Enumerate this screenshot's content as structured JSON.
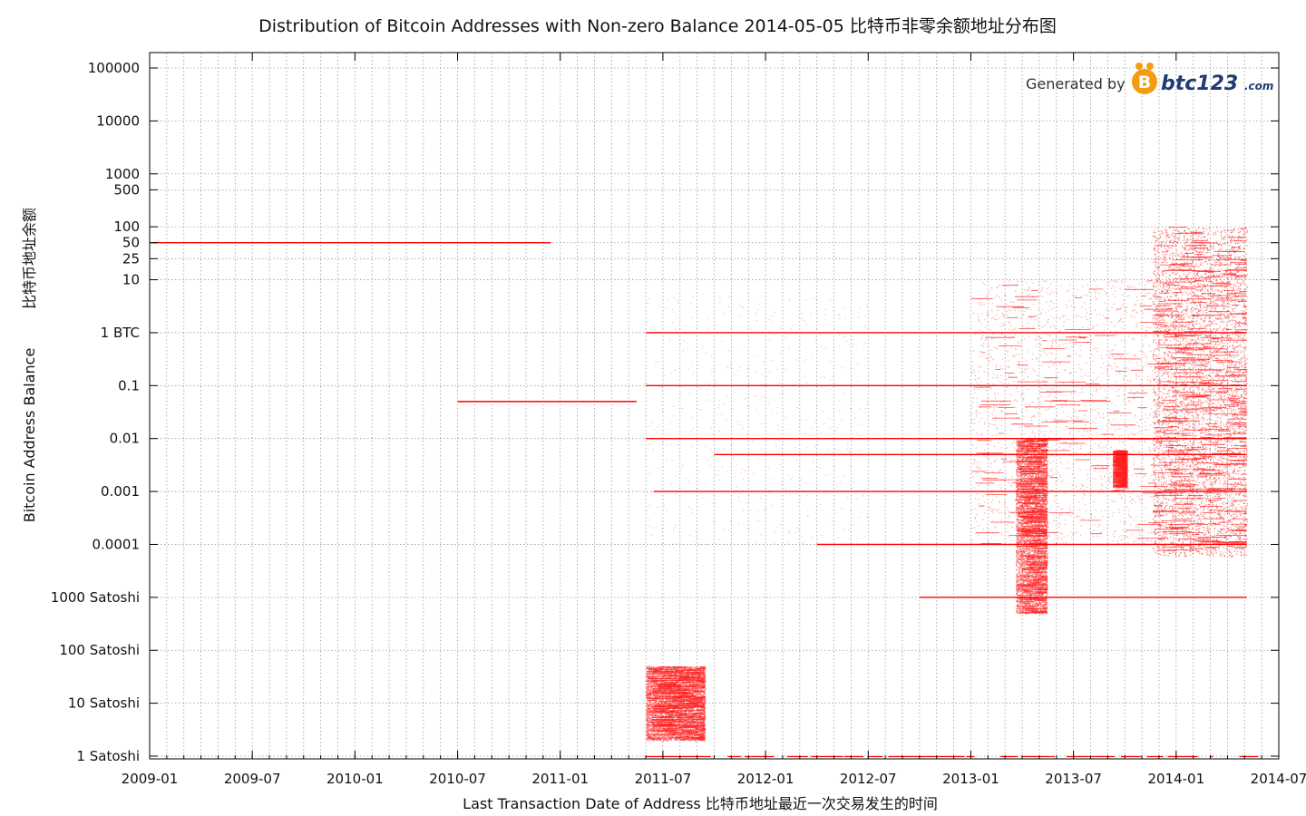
{
  "chart_data": {
    "type": "scatter",
    "title": "Distribution of Bitcoin Addresses with Non-zero Balance  2014-05-05   比特币非零余额地址分布图",
    "xlabel": "Last Transaction Date of Address    比特币地址最近一次交易发生的时间",
    "ylabel_en": "Bitcoin Address Balance",
    "ylabel_zh": "比特币地址余额",
    "y_scale": "log",
    "ylim": [
      1e-08,
      150000
    ],
    "xlim": [
      "2009-01",
      "2014-07"
    ],
    "grid": true,
    "color": "#ff0000",
    "x_ticks": [
      "2009-01",
      "2009-07",
      "2010-01",
      "2010-07",
      "2011-01",
      "2011-07",
      "2012-01",
      "2012-07",
      "2013-01",
      "2013-07",
      "2014-01",
      "2014-07"
    ],
    "y_ticks": [
      {
        "value": 100000,
        "label": "100000"
      },
      {
        "value": 10000,
        "label": "10000"
      },
      {
        "value": 1000,
        "label": "1000"
      },
      {
        "value": 500,
        "label": "500"
      },
      {
        "value": 100,
        "label": "100"
      },
      {
        "value": 50,
        "label": "50"
      },
      {
        "value": 25,
        "label": "25"
      },
      {
        "value": 10,
        "label": "10"
      },
      {
        "value": 1,
        "label": "1 BTC"
      },
      {
        "value": 0.1,
        "label": "0.1"
      },
      {
        "value": 0.01,
        "label": "0.01"
      },
      {
        "value": 0.001,
        "label": "0.001"
      },
      {
        "value": 0.0001,
        "label": "0.0001"
      },
      {
        "value": 1e-05,
        "label": "1000 Satoshi"
      },
      {
        "value": 1e-06,
        "label": "100 Satoshi"
      },
      {
        "value": 1e-07,
        "label": "10 Satoshi"
      },
      {
        "value": 1e-08,
        "label": "1 Satoshi"
      }
    ],
    "lines": [
      {
        "balance": 50,
        "from": "2009-01-03",
        "to": "2010-12-15"
      },
      {
        "balance": 1,
        "from": "2011-06-01",
        "to": "2014-05-05"
      },
      {
        "balance": 0.1,
        "from": "2011-06-01",
        "to": "2014-05-05"
      },
      {
        "balance": 0.05,
        "from": "2010-07-01",
        "to": "2011-05-15"
      },
      {
        "balance": 0.01,
        "from": "2011-06-01",
        "to": "2014-05-05"
      },
      {
        "balance": 0.005,
        "from": "2011-10-01",
        "to": "2014-05-05"
      },
      {
        "balance": 0.001,
        "from": "2011-06-15",
        "to": "2014-05-05"
      },
      {
        "balance": 0.0001,
        "from": "2012-04-01",
        "to": "2014-05-05"
      },
      {
        "balance": 1e-05,
        "from": "2012-10-01",
        "to": "2014-05-05"
      }
    ],
    "dense_regions": [
      {
        "from": "2013-01-01",
        "to": "2014-05-05",
        "y_range": [
          0.0001,
          10
        ],
        "density": "medium"
      },
      {
        "from": "2013-11-20",
        "to": "2014-05-05",
        "y_range": [
          6e-05,
          100
        ],
        "density": "high"
      },
      {
        "from": "2011-06-01",
        "to": "2011-09-15",
        "y_range": [
          2e-08,
          5e-07
        ],
        "density": "high"
      },
      {
        "from": "2013-03-20",
        "to": "2013-05-15",
        "y_range": [
          5e-06,
          0.01
        ],
        "density": "high"
      },
      {
        "from": "2013-09-10",
        "to": "2013-10-05",
        "y_range": [
          0.0012,
          0.006
        ],
        "density": "high"
      },
      {
        "from": "2011-06-01",
        "to": "2012-06-30",
        "y_range": [
          0.0001,
          5
        ],
        "density": "low"
      }
    ]
  },
  "watermark": {
    "prefix": "Generated by",
    "brand": "btc123",
    "suffix": ".com",
    "logo_letter": "B"
  }
}
